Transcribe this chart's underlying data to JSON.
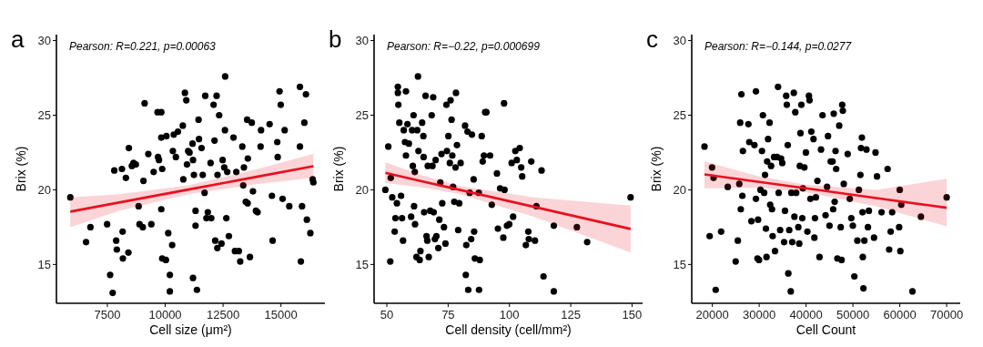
{
  "chart_data": [
    {
      "type": "scatter",
      "xlabel": "Cell size (μm²)",
      "ylabel": "Brix (%)",
      "annotations": [
        "a",
        "Pearson: R=0.221, p=0.00063"
      ],
      "xlim": [
        5300,
        16900
      ],
      "xticks": [
        7500,
        10000,
        12500,
        15000
      ],
      "ylim": [
        12.4,
        30.4
      ],
      "yticks": [
        15,
        20,
        25,
        30
      ],
      "grid": false,
      "series": [
        {
          "marker": "circle",
          "color": "#000000",
          "x": [
            5900,
            6580,
            6770,
            7490,
            7620,
            7730,
            7800,
            7880,
            7910,
            8130,
            8160,
            8170,
            8300,
            8410,
            8430,
            8560,
            8630,
            8730,
            8850,
            8890,
            9030,
            9060,
            9270,
            9400,
            9500,
            9110,
            9670,
            9830,
            9690,
            9730,
            9830,
            9870,
            9830,
            9870,
            10030,
            10050,
            10130,
            10200,
            10200,
            10300,
            10330,
            10370,
            10460,
            10550,
            10760,
            10780,
            10850,
            10910,
            10940,
            10990,
            11050,
            11180,
            11200,
            11240,
            11310,
            11310,
            11200,
            11370,
            11440,
            11460,
            11570,
            11620,
            11700,
            11730,
            11780,
            11840,
            11960,
            11990,
            12090,
            12130,
            12160,
            12220,
            12250,
            12260,
            12330,
            12430,
            12480,
            12550,
            12580,
            12590,
            12640,
            12680,
            12750,
            12950,
            13010,
            13070,
            13180,
            13240,
            13330,
            13370,
            13400,
            13480,
            13540,
            13560,
            13570,
            13660,
            13740,
            13790,
            13920,
            13990,
            14120,
            14140,
            14510,
            14610,
            14640,
            14840,
            14860,
            14940,
            14990,
            15070,
            15160,
            15360,
            15820,
            15820,
            15860,
            15910,
            16080,
            16010,
            16120,
            16270,
            16370,
            16400
          ],
          "values": [
            19.5,
            16.5,
            17.5,
            17.7,
            14.3,
            13.1,
            21.3,
            16.6,
            16.0,
            21.4,
            17.2,
            15.4,
            20.8,
            15.8,
            22.8,
            21.6,
            21.8,
            21.7,
            18.9,
            17.7,
            17.5,
            20.6,
            22.4,
            17.7,
            21.2,
            25.8,
            25.2,
            25.2,
            22.2,
            22.0,
            23.5,
            21.4,
            18.7,
            15.4,
            15.3,
            23.6,
            17.1,
            13.2,
            14.3,
            16.3,
            22.6,
            23.7,
            22.2,
            23.9,
            24.3,
            20.7,
            26.5,
            26.0,
            21.7,
            22.6,
            22.5,
            23.1,
            22.0,
            21.0,
            18.6,
            17.6,
            14.1,
            13.3,
            24.7,
            23.4,
            22.8,
            21.0,
            19.8,
            26.3,
            18.1,
            18.5,
            21.8,
            18.1,
            25.7,
            23.3,
            16.6,
            26.3,
            16.1,
            21.0,
            25.0,
            16.4,
            22.0,
            21.5,
            24.0,
            27.6,
            18.1,
            21.2,
            16.9,
            23.5,
            15.9,
            21.2,
            15.9,
            15.2,
            22.9,
            20.3,
            21.5,
            19.2,
            24.7,
            19.1,
            22.1,
            15.5,
            24.5,
            19.9,
            18.6,
            18.5,
            22.9,
            24.0,
            24.4,
            19.6,
            16.6,
            23.2,
            22.2,
            26.6,
            25.7,
            19.4,
            24.0,
            18.9,
            26.9,
            22.9,
            15.2,
            18.9,
            26.4,
            24.5,
            18.0,
            17.1,
            20.7,
            20.5
          ]
        },
        {
          "type": "line",
          "color": "#e8101f",
          "x": [
            5900,
            8000,
            11000,
            14000,
            16400
          ],
          "values": [
            18.54,
            19.15,
            20.02,
            20.89,
            21.58
          ],
          "lower": [
            17.5,
            18.6,
            19.7,
            20.4,
            20.8
          ],
          "upper": [
            19.5,
            19.7,
            20.3,
            21.4,
            22.4
          ]
        }
      ]
    },
    {
      "type": "scatter",
      "xlabel": "Cell density (cell/mm²)",
      "ylabel": "Brix (%)",
      "annotations": [
        "b",
        "Pearson: R=−0.22, p=0.000699"
      ],
      "xlim": [
        44.8,
        154.3
      ],
      "xticks": [
        50,
        75,
        100,
        125,
        150
      ],
      "ylim": [
        12.4,
        30.4
      ],
      "yticks": [
        15,
        20,
        25,
        30
      ],
      "grid": false,
      "series": [
        {
          "marker": "circle",
          "color": "#000000",
          "x": [
            49.4,
            50.6,
            51.4,
            51.6,
            52.2,
            53.2,
            53.5,
            54.1,
            54.5,
            54.5,
            54.7,
            55.1,
            55.8,
            56.2,
            56.6,
            56.9,
            57.4,
            57.8,
            57.8,
            58.4,
            59.0,
            59.9,
            60.3,
            60.6,
            60.9,
            61.1,
            61.4,
            61.5,
            62.1,
            62.4,
            62.7,
            62.9,
            63.4,
            63.7,
            64.4,
            64.9,
            65.0,
            65.2,
            65.8,
            66.2,
            66.5,
            66.7,
            67.1,
            67.7,
            68.3,
            68.6,
            68.9,
            69.1,
            69.6,
            69.9,
            70.2,
            71.0,
            71.4,
            71.8,
            72.3,
            72.6,
            73.3,
            73.9,
            74.3,
            74.5,
            75.1,
            75.7,
            76.0,
            76.4,
            76.7,
            77.0,
            77.5,
            78.0,
            78.2,
            78.6,
            79.1,
            79.5,
            80.1,
            81.9,
            82.2,
            82.4,
            82.9,
            83.2,
            83.8,
            84.4,
            84.7,
            85.4,
            85.6,
            85.9,
            87.5,
            87.6,
            87.9,
            88.7,
            89.1,
            89.6,
            90.1,
            90.6,
            92.1,
            92.8,
            94.9,
            95.3,
            96.2,
            97.5,
            97.8,
            98.0,
            99.0,
            99.9,
            100.9,
            101.5,
            102.4,
            103.0,
            104.2,
            104.8,
            105.2,
            106.7,
            107.7,
            107.9,
            108.9,
            110.4,
            111.0,
            113.1,
            113.9,
            118.1,
            118.1,
            127.5,
            131.7,
            149.4
          ],
          "values": [
            20.0,
            22.9,
            15.2,
            20.8,
            19.5,
            17.2,
            18.1,
            19.1,
            26.9,
            26.5,
            25.7,
            24.5,
            19.6,
            18.1,
            16.6,
            24.0,
            23.2,
            26.6,
            22.3,
            24.4,
            23.1,
            18.2,
            24.0,
            21.6,
            25.0,
            18.9,
            21.2,
            17.7,
            15.5,
            24.0,
            27.6,
            22.6,
            15.3,
            15.9,
            24.5,
            23.6,
            22.2,
            18.5,
            26.3,
            16.9,
            16.6,
            21.6,
            15.5,
            18.6,
            25.0,
            21.6,
            26.2,
            18.5,
            16.7,
            22.0,
            16.9,
            16.1,
            18.0,
            20.5,
            22.4,
            19.1,
            17.5,
            16.4,
            25.7,
            22.6,
            23.6,
            21.8,
            26.0,
            24.7,
            22.3,
            20.2,
            19.2,
            21.5,
            26.5,
            23.0,
            17.3,
            19.1,
            21.8,
            24.3,
            14.3,
            16.3,
            23.9,
            13.3,
            19.8,
            16.7,
            23.7,
            20.7,
            17.2,
            15.4,
            19.8,
            13.3,
            15.3,
            23.6,
            21.9,
            22.3,
            25.2,
            25.2,
            22.3,
            19.0,
            21.1,
            17.4,
            20.1,
            16.8,
            25.8,
            20.0,
            17.6,
            17.7,
            21.8,
            18.2,
            22.6,
            22.0,
            22.8,
            21.5,
            20.9,
            16.3,
            17.2,
            16.7,
            21.9,
            16.6,
            18.9,
            21.3,
            14.2,
            17.6,
            13.2,
            17.5,
            16.5,
            19.5
          ]
        },
        {
          "type": "line",
          "color": "#e8101f",
          "x": [
            49.4,
            65,
            80,
            110,
            149.4
          ],
          "values": [
            21.14,
            20.55,
            19.99,
            18.86,
            17.38
          ],
          "lower": [
            20.45,
            20.15,
            19.7,
            18.2,
            15.8
          ],
          "upper": [
            21.85,
            20.95,
            20.25,
            19.5,
            18.95
          ]
        }
      ]
    },
    {
      "type": "scatter",
      "xlabel": "Cell Count",
      "ylabel": "Brix (%)",
      "annotations": [
        "c",
        "Pearson: R=−0.144, p=0.0277"
      ],
      "xlim": [
        15600,
        72900
      ],
      "xticks": [
        20000,
        30000,
        40000,
        50000,
        60000,
        70000
      ],
      "ylim": [
        12.4,
        30.4
      ],
      "yticks": [
        15,
        20,
        25,
        30
      ],
      "grid": false,
      "series": [
        {
          "marker": "circle",
          "color": "#000000",
          "x": [
            18320,
            19420,
            19940,
            20260,
            20710,
            21870,
            23290,
            24970,
            25430,
            25750,
            25940,
            26070,
            26200,
            26400,
            26520,
            27690,
            27880,
            28330,
            28980,
            29300,
            29300,
            29630,
            29750,
            29950,
            30270,
            30590,
            30790,
            31050,
            31240,
            31430,
            31560,
            31690,
            31890,
            32210,
            32340,
            32530,
            32730,
            32860,
            33180,
            33370,
            33820,
            34020,
            34150,
            34470,
            34660,
            34920,
            35310,
            35500,
            35760,
            35890,
            36090,
            36210,
            36410,
            36730,
            36860,
            37050,
            37380,
            37510,
            37700,
            37890,
            38350,
            38540,
            38670,
            38800,
            38990,
            39190,
            39320,
            39640,
            39960,
            40280,
            40610,
            40740,
            40930,
            41120,
            41580,
            41770,
            41900,
            42090,
            42420,
            42870,
            43190,
            43510,
            44160,
            44480,
            44680,
            45000,
            45260,
            45650,
            45780,
            45900,
            46100,
            46290,
            46420,
            46680,
            47070,
            47390,
            47580,
            47710,
            47840,
            48040,
            48880,
            49330,
            49650,
            49980,
            50300,
            50940,
            51270,
            51590,
            51720,
            51910,
            52040,
            52110,
            52240,
            52430,
            52880,
            53200,
            53400,
            54500,
            54820,
            55140,
            56110,
            57400,
            57730,
            58050,
            58370,
            59860,
            59990,
            60120,
            60310,
            62700,
            64510,
            70000
          ],
          "values": [
            22.9,
            16.9,
            21.5,
            20.8,
            13.3,
            17.2,
            20.2,
            15.2,
            16.6,
            20.4,
            24.5,
            18.7,
            26.4,
            19.6,
            22.6,
            24.4,
            23.2,
            17.9,
            23.0,
            26.6,
            19.4,
            15.4,
            18.0,
            15.3,
            20.0,
            22.6,
            25.0,
            19.8,
            21.0,
            17.4,
            15.5,
            21.9,
            23.4,
            24.5,
            19.0,
            21.6,
            18.7,
            16.9,
            22.2,
            15.9,
            22.2,
            26.9,
            19.8,
            17.3,
            22.1,
            21.8,
            16.5,
            18.6,
            26.3,
            25.7,
            23.0,
            14.4,
            17.3,
            13.2,
            19.8,
            16.5,
            26.5,
            18.2,
            25.2,
            19.8,
            17.5,
            16.4,
            21.6,
            23.8,
            25.7,
            18.1,
            20.1,
            21.5,
            22.5,
            17.2,
            26.3,
            26.0,
            19.4,
            23.9,
            23.4,
            16.8,
            18.1,
            19.5,
            20.6,
            15.5,
            22.7,
            25.0,
            18.3,
            20.2,
            23.6,
            17.6,
            21.9,
            21.9,
            18.7,
            25.1,
            19.2,
            22.6,
            21.4,
            15.4,
            24.3,
            17.5,
            15.3,
            25.7,
            25.3,
            20.4,
            22.4,
            19.4,
            18.1,
            17.6,
            14.2,
            16.6,
            20.0,
            21.0,
            22.8,
            23.5,
            18.5,
            15.5,
            13.4,
            16.6,
            22.7,
            17.5,
            18.6,
            16.8,
            22.5,
            20.9,
            18.5,
            21.4,
            16.0,
            17.2,
            18.5,
            17.5,
            20.0,
            15.9,
            19.0,
            13.2,
            18.2,
            19.5
          ]
        },
        {
          "type": "line",
          "color": "#e8101f",
          "x": [
            18320,
            30000,
            40000,
            55000,
            70000
          ],
          "values": [
            21.03,
            20.53,
            20.1,
            19.45,
            18.8
          ],
          "lower": [
            20.1,
            20.15,
            19.85,
            18.9,
            17.55
          ],
          "upper": [
            21.9,
            20.9,
            20.35,
            20.0,
            20.75
          ]
        }
      ]
    }
  ]
}
